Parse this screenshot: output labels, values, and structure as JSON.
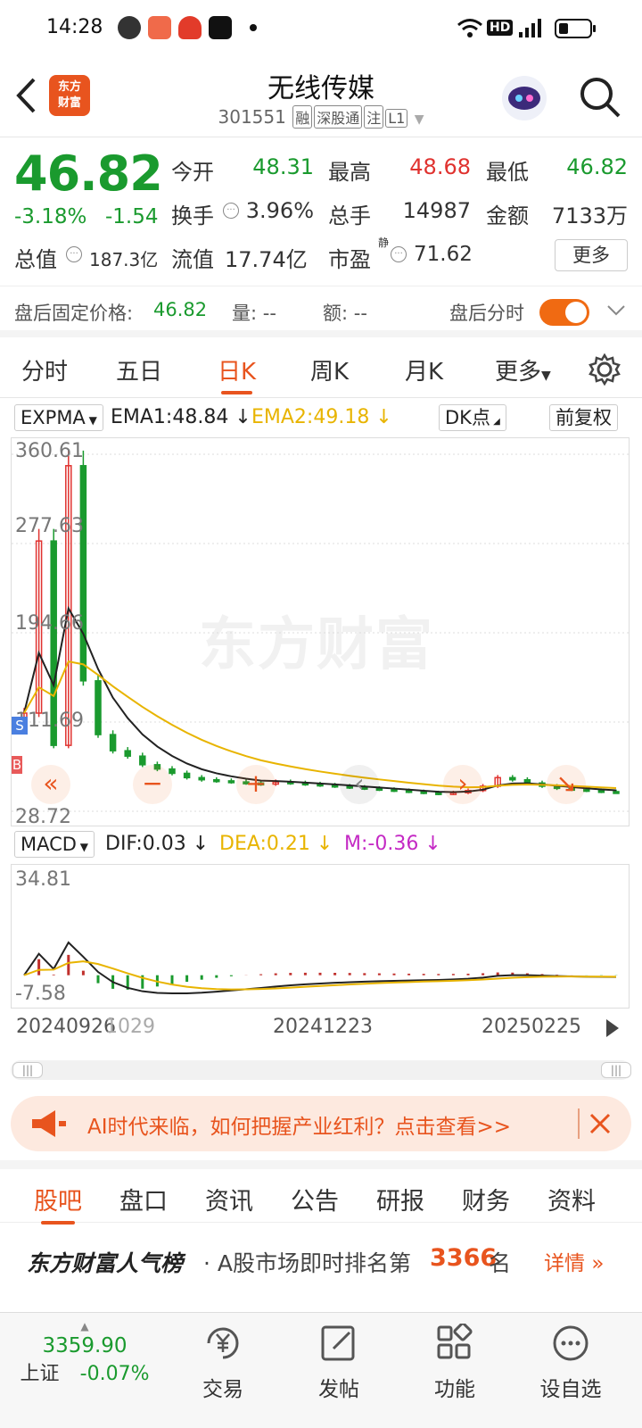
{
  "status": {
    "time": "14:28"
  },
  "header": {
    "back_icon": "chevron-left-icon",
    "logo": "东方\n财富",
    "title": "无线传媒",
    "code": "301551",
    "tags": [
      "融",
      "深股通",
      "注",
      "L1"
    ]
  },
  "quote": {
    "price": "46.82",
    "change_pct": "-3.18%",
    "change": "-1.54",
    "open_label": "今开",
    "open": "48.31",
    "high_label": "最高",
    "high": "48.68",
    "low_label": "最低",
    "low": "46.82",
    "turnover_label": "换手",
    "turnover": "3.96%",
    "volume_label": "总手",
    "volume": "14987",
    "amount_label": "金额",
    "amount": "7133万",
    "mktcap_label": "总值",
    "mktcap": "187.3亿",
    "float_label": "流值",
    "float": "17.74亿",
    "pe_label": "市盈",
    "pe_sup": "静",
    "pe": "71.62",
    "more_label": "更多"
  },
  "after_hours": {
    "fixed_price_label": "盘后固定价格:",
    "fixed_price": "46.82",
    "vol_label": "量: --",
    "amt_label": "额: --",
    "time_share_label": "盘后分时"
  },
  "ktabs": [
    {
      "label": "分时"
    },
    {
      "label": "五日"
    },
    {
      "label": "日K"
    },
    {
      "label": "周K"
    },
    {
      "label": "月K"
    },
    {
      "label": "更多"
    }
  ],
  "kline_bar": {
    "indicator": "EXPMA",
    "ema1": "EMA1:48.84",
    "ema2": "EMA2:49.18",
    "dk": "DK点",
    "adjust": "前复权"
  },
  "macd_bar": {
    "indicator": "MACD",
    "dif": "DIF:0.03",
    "dea": "DEA:0.21",
    "m": "M:-0.36"
  },
  "chart_data": [
    {
      "type": "candlestick",
      "y_ticks": [
        "360.61",
        "277.63",
        "194.66",
        "111.69",
        "28.72"
      ],
      "ylim": [
        28.72,
        360.61
      ],
      "markers": [
        "S",
        "B"
      ],
      "series": [
        {
          "name": "EMA1",
          "color": "#222222"
        },
        {
          "name": "EMA2",
          "color": "#e8b400"
        }
      ],
      "approx_close": [
        120,
        280,
        90,
        350,
        150,
        100,
        85,
        80,
        72,
        68,
        64,
        60,
        58,
        57,
        56,
        55,
        54,
        56,
        55,
        54,
        53,
        52,
        51,
        50,
        49,
        48,
        47,
        46,
        45,
        46,
        48,
        52,
        60,
        58,
        55,
        52,
        50,
        49,
        48,
        47,
        46.82
      ]
    },
    {
      "type": "macd",
      "y_ticks": [
        "34.81",
        "-7.58"
      ],
      "ylim": [
        -7.58,
        34.81
      ],
      "series": [
        {
          "name": "DIF",
          "color": "#222222"
        },
        {
          "name": "DEA",
          "color": "#e8b400"
        }
      ]
    }
  ],
  "dates": [
    "20240926",
    "1029",
    "20241223",
    "20250225"
  ],
  "banner": {
    "text": "AI时代来临，如何把握产业红利？点击查看>>"
  },
  "news_tabs": [
    {
      "label": "股吧"
    },
    {
      "label": "盘口"
    },
    {
      "label": "资讯"
    },
    {
      "label": "公告"
    },
    {
      "label": "研报"
    },
    {
      "label": "财务"
    },
    {
      "label": "资料"
    }
  ],
  "rank": {
    "brand": "东方财富人气榜",
    "text": "· A股市场即时排名第",
    "num": "3366",
    "suffix": "名",
    "detail": "详情"
  },
  "footer": {
    "index_value": "3359.90",
    "index_name": "上证",
    "index_change": "-0.07%",
    "items": [
      {
        "label": "交易"
      },
      {
        "label": "发帖"
      },
      {
        "label": "功能"
      },
      {
        "label": "设自选"
      }
    ]
  }
}
